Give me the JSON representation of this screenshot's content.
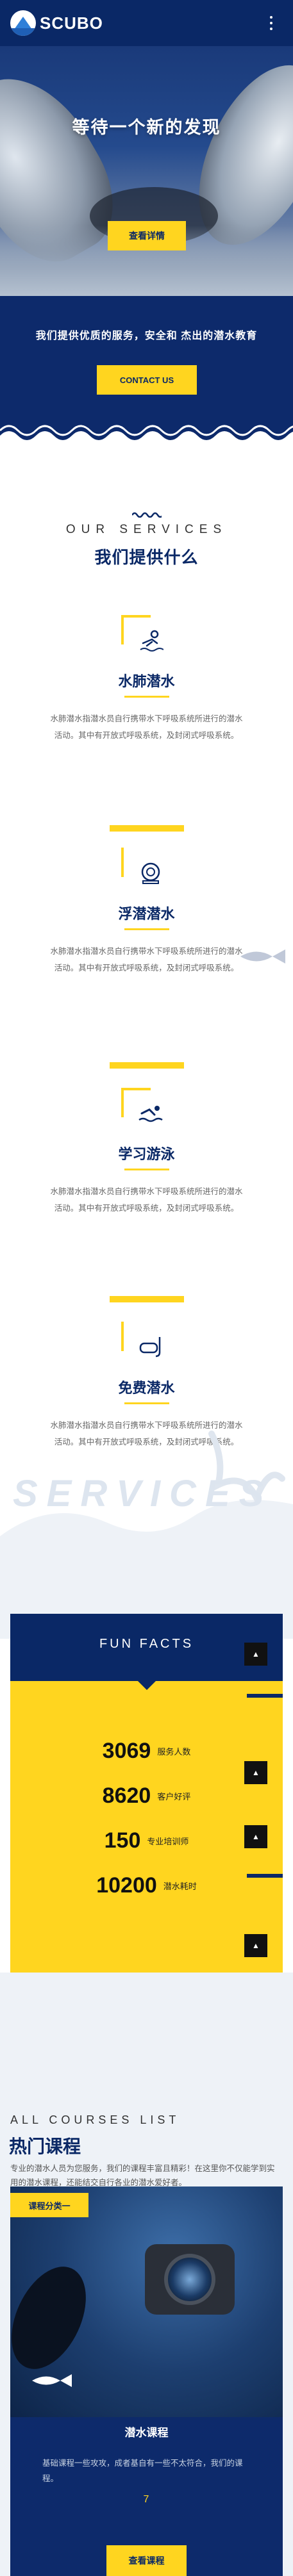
{
  "header": {
    "logo_text": "SCUBO",
    "menu_icon": "vertical-dots-icon"
  },
  "hero": {
    "title": "等待一个新的发现",
    "button_label": "查看详情"
  },
  "band": {
    "text": "我们提供优质的服务，安全和 杰出的潜水教育",
    "button_label": "CONTACT US"
  },
  "services": {
    "en_title": "OUR SERVICES",
    "cn_title": "我们提供什么",
    "watermark": "SERVICES",
    "items": [
      {
        "title": "水肺潜水",
        "icon": "diver-icon",
        "desc": "水肺潜水指潜水员自行携带水下呼吸系统所进行的潜水活动。其中有开放式呼吸系统，及封闭式呼吸系统。"
      },
      {
        "title": "浮潜潜水",
        "icon": "diving-helmet-icon",
        "desc": "水肺潜水指潜水员自行携带水下呼吸系统所进行的潜水活动。其中有开放式呼吸系统，及封闭式呼吸系统。"
      },
      {
        "title": "学习游泳",
        "icon": "swimmer-icon",
        "desc": "水肺潜水指潜水员自行携带水下呼吸系统所进行的潜水活动。其中有开放式呼吸系统，及封闭式呼吸系统。"
      },
      {
        "title": "免费潜水",
        "icon": "snorkel-mask-icon",
        "desc": "水肺潜水指潜水员自行携带水下呼吸系统所进行的潜水活动。其中有开放式呼吸系统，及封闭式呼吸系统。"
      }
    ]
  },
  "funfacts": {
    "title": "FUN FACTS",
    "stats": [
      {
        "value": "3069",
        "label": "服务人数"
      },
      {
        "value": "8620",
        "label": "客户好评"
      },
      {
        "value": "150",
        "label": "专业培训师"
      },
      {
        "value": "10200",
        "label": "潜水耗时"
      }
    ]
  },
  "courses": {
    "en_title": "ALL COURSES LIST",
    "cn_title": "热门课程",
    "desc": "专业的潜水人员为您服务，我们的课程丰富且精彩！在这里你不仅能学到实用的潜水课程，还能结交自行各业的潜水爱好者。",
    "badge": "课程分类一",
    "card": {
      "name": "潜水课程",
      "desc": "基础课程一些攻攻，成者基自有一些不太符合，我们的课程。",
      "num": "7",
      "button_label": "查看课程"
    }
  },
  "colors": {
    "navy": "#0a2866",
    "yellow": "#ffd51f",
    "black_btn": "#111111"
  }
}
